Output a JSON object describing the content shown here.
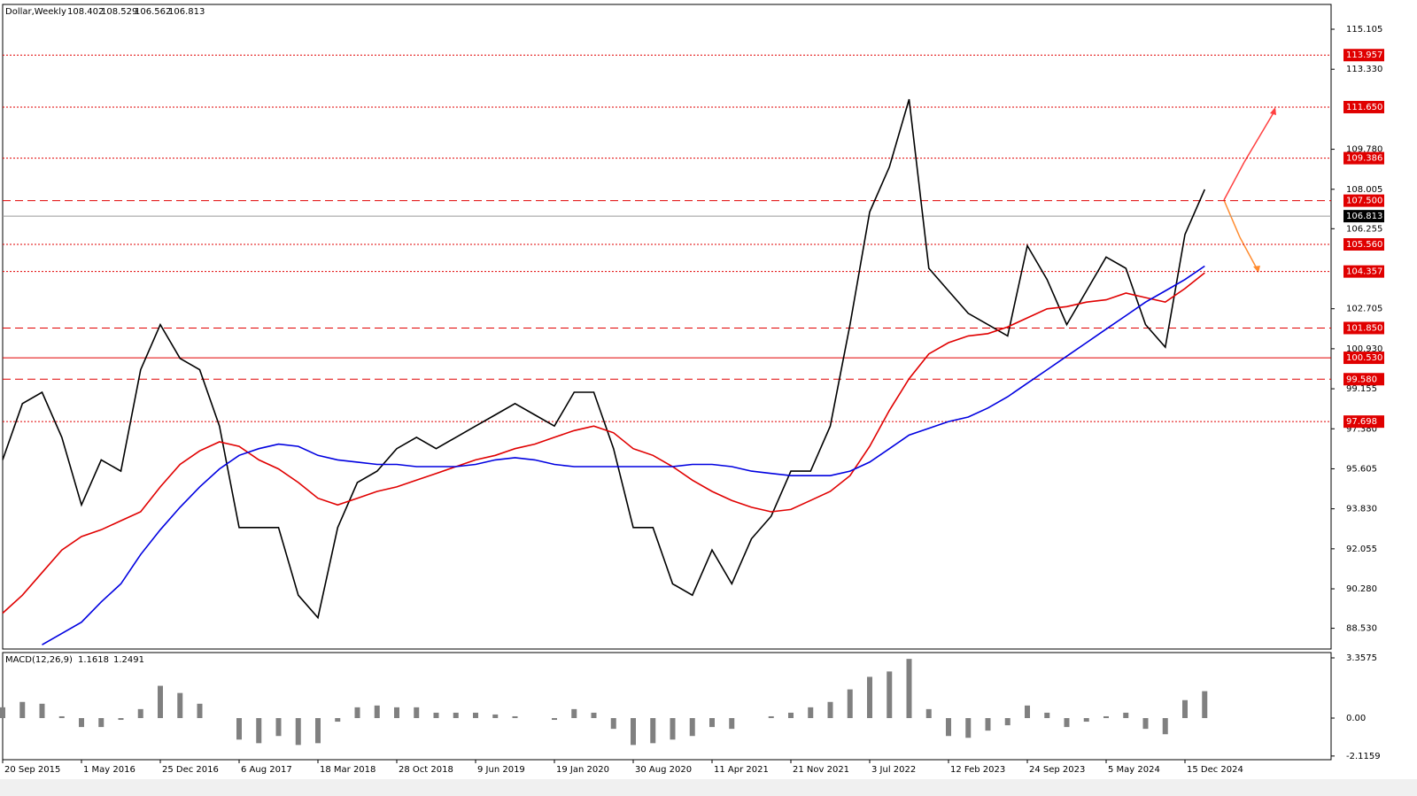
{
  "chart_data": [
    {
      "type": "line",
      "title": "Dollar,Weekly",
      "ohlc": [
        108.402,
        108.529,
        106.562,
        106.813
      ],
      "categories": [
        "20 Sep 2015",
        null,
        null,
        null,
        "1 May 2016",
        null,
        null,
        null,
        "25 Dec 2016",
        null,
        null,
        null,
        "6 Aug 2017",
        null,
        null,
        null,
        "18 Mar 2018",
        null,
        null,
        null,
        "28 Oct 2018",
        null,
        null,
        null,
        "9 Jun 2019",
        null,
        null,
        null,
        "19 Jan 2020",
        null,
        null,
        null,
        "30 Aug 2020",
        null,
        null,
        null,
        "11 Apr 2021",
        null,
        null,
        null,
        "21 Nov 2021",
        null,
        null,
        null,
        "3 Jul 2022",
        null,
        null,
        null,
        "12 Feb 2023",
        null,
        null,
        null,
        "24 Sep 2023",
        null,
        null,
        null,
        "5 May 2024",
        null,
        null,
        null,
        "15 Dec 2024",
        null
      ],
      "series": [
        {
          "color": "#000000",
          "values": [
            96,
            98.5,
            99,
            97,
            94,
            96,
            95.5,
            100,
            102,
            100.5,
            100,
            97.5,
            93,
            93,
            93,
            90,
            89,
            93,
            95,
            95.5,
            96.5,
            97,
            96.5,
            97,
            97.5,
            98,
            98.5,
            98,
            97.5,
            99,
            99,
            96.5,
            93,
            93,
            90.5,
            90,
            92,
            90.5,
            92.5,
            93.5,
            95.5,
            95.5,
            97.5,
            102,
            107,
            109,
            112,
            104.5,
            103.5,
            102.5,
            102,
            101.5,
            105.5,
            104,
            102,
            103.5,
            105,
            104.5,
            102,
            101,
            106,
            108
          ]
        },
        {
          "color": "#e00000",
          "values": [
            89.2,
            90.0,
            91.0,
            92.0,
            92.6,
            92.9,
            93.3,
            93.7,
            94.8,
            95.8,
            96.4,
            96.8,
            96.6,
            96.0,
            95.6,
            95.0,
            94.3,
            94.0,
            94.3,
            94.6,
            94.8,
            95.1,
            95.4,
            95.7,
            96.0,
            96.2,
            96.5,
            96.7,
            97.0,
            97.3,
            97.5,
            97.2,
            96.5,
            96.2,
            95.7,
            95.1,
            94.6,
            94.2,
            93.9,
            93.7,
            93.8,
            94.2,
            94.6,
            95.3,
            96.6,
            98.2,
            99.6,
            100.7,
            101.2,
            101.5,
            101.6,
            101.9,
            102.3,
            102.7,
            102.8,
            103.0,
            103.1,
            103.4,
            103.2,
            103.0,
            103.6,
            104.3
          ]
        },
        {
          "color": "#0000e0",
          "values": [
            null,
            null,
            87.8,
            88.3,
            88.8,
            89.7,
            90.5,
            91.8,
            92.9,
            93.9,
            94.8,
            95.6,
            96.2,
            96.5,
            96.7,
            96.6,
            96.2,
            96.0,
            95.9,
            95.8,
            95.8,
            95.7,
            95.7,
            95.7,
            95.8,
            96.0,
            96.1,
            96.0,
            95.8,
            95.7,
            95.7,
            95.7,
            95.7,
            95.7,
            95.7,
            95.8,
            95.8,
            95.7,
            95.5,
            95.4,
            95.3,
            95.3,
            95.3,
            95.5,
            95.9,
            96.5,
            97.1,
            97.4,
            97.7,
            97.9,
            98.3,
            98.8,
            99.4,
            100.0,
            100.6,
            101.2,
            101.8,
            102.4,
            103.0,
            103.5,
            104.0,
            104.6
          ]
        }
      ],
      "ylim": [
        87.61,
        116.205
      ],
      "yticks": [
        115.105,
        {
          "value": 113.33,
          "label": "113.330"
        },
        {
          "value": 109.78,
          "label": "109.780"
        },
        108.005,
        106.255,
        102.705,
        {
          "value": 100.93,
          "label": "100.930"
        },
        99.155,
        {
          "value": 97.38,
          "label": "97.380"
        },
        95.605,
        {
          "value": 93.83,
          "label": "93.830"
        },
        92.055,
        {
          "value": 90.28,
          "label": "90.280"
        },
        {
          "value": 88.53,
          "label": "88.530"
        }
      ],
      "levels": [
        {
          "value": 113.957,
          "line": "dotted",
          "color": "#e00000"
        },
        {
          "value": {
            "value": 111.65,
            "label": "111.650"
          },
          "line": "dotted",
          "color": "#e00000"
        },
        {
          "value": 109.386,
          "line": "dotted",
          "color": "#e00000"
        },
        {
          "value": {
            "value": 107.5,
            "label": "107.500"
          },
          "line": "dashed",
          "color": "#e00000"
        },
        {
          "value": 106.813,
          "line": "solid",
          "color": "#000000"
        },
        {
          "value": {
            "value": 105.56,
            "label": "105.560"
          },
          "line": "dotted",
          "color": "#e00000"
        },
        {
          "value": 104.357,
          "line": "dotted",
          "color": "#e00000"
        },
        {
          "value": {
            "value": 101.85,
            "label": "101.850"
          },
          "line": "dashed",
          "color": "#e00000"
        },
        {
          "value": {
            "value": 100.53,
            "label": "100.530"
          },
          "line": "solid",
          "color": "#e00000"
        },
        {
          "value": {
            "value": 99.58,
            "label": "99.580"
          },
          "line": "dashed",
          "color": "#e00000"
        },
        {
          "value": 97.698,
          "line": "dotted",
          "color": "#e00000"
        }
      ]
    },
    {
      "type": "bar",
      "title": "MACD(12,26,9)",
      "readings": [
        1.1618,
        1.2491
      ],
      "color": "#808080",
      "values": [
        0.6,
        0.9,
        0.8,
        0.1,
        -0.5,
        -0.5,
        -0.1,
        0.5,
        1.8,
        1.4,
        0.8,
        0,
        -1.2,
        -1.4,
        -1,
        -1.5,
        -1.4,
        -0.2,
        0.6,
        0.7,
        0.6,
        0.6,
        0.3,
        0.3,
        0.3,
        0.2,
        0.1,
        0,
        -0.1,
        0.5,
        0.3,
        -0.6,
        -1.5,
        -1.4,
        -1.2,
        -1.0,
        -0.5,
        -0.6,
        0,
        0.1,
        0.3,
        0.6,
        0.9,
        1.6,
        2.3,
        2.6,
        3.3,
        0.5,
        -1.0,
        -1.1,
        -0.7,
        -0.4,
        0.7,
        0.3,
        -0.5,
        -0.2,
        0.1,
        0.3,
        -0.6,
        -0.9,
        1.0,
        1.5
      ],
      "ylim": [
        -2.321,
        3.654
      ],
      "yticks": [
        3.3575,
        {
          "value": 0,
          "label": "0.00"
        },
        -2.1159
      ]
    }
  ]
}
